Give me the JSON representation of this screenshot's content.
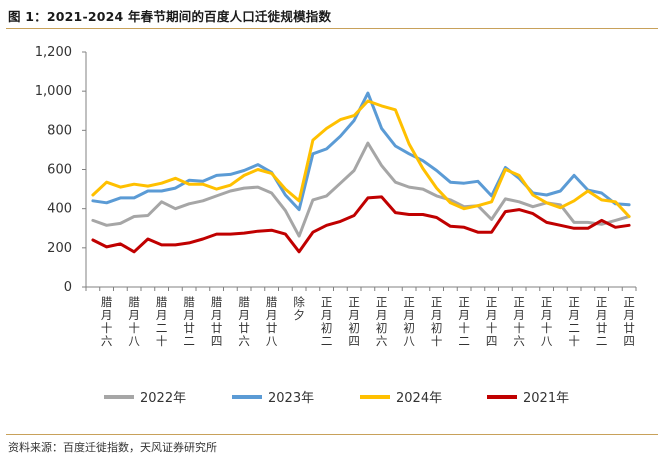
{
  "title": "图 1：2021-2024 年春节期间的百度人口迁徙规模指数",
  "source": "资料来源：百度迁徙指数，天风证券研究所",
  "chart_data": {
    "type": "line",
    "ylim": [
      0,
      1200
    ],
    "yticks": [
      "0",
      "200",
      "400",
      "600",
      "800",
      "1,000",
      "1,200"
    ],
    "ytick_values": [
      0,
      200,
      400,
      600,
      800,
      1000,
      1200
    ],
    "x_labels": [
      "腊月十六",
      "腊月十八",
      "腊月二十",
      "腊月廿二",
      "腊月廿四",
      "腊月廿六",
      "腊月廿八",
      "除夕",
      "正月初二",
      "正月初四",
      "正月初六",
      "正月初八",
      "正月初十",
      "正月十二",
      "正月十四",
      "正月十六",
      "正月十八",
      "正月二十",
      "正月廿二",
      "正月廿四"
    ],
    "n_points": 40,
    "series": [
      {
        "name": "2022年",
        "color": "#a6a6a6",
        "values": [
          340,
          315,
          325,
          360,
          365,
          435,
          400,
          425,
          440,
          465,
          490,
          505,
          510,
          480,
          390,
          260,
          445,
          465,
          530,
          595,
          735,
          620,
          535,
          510,
          500,
          465,
          445,
          410,
          415,
          345,
          450,
          435,
          410,
          430,
          420,
          330,
          330,
          320,
          340,
          360
        ]
      },
      {
        "name": "2023年",
        "color": "#5b9bd5",
        "values": [
          440,
          430,
          455,
          455,
          490,
          490,
          505,
          545,
          540,
          570,
          575,
          595,
          625,
          585,
          470,
          395,
          680,
          705,
          770,
          850,
          990,
          810,
          720,
          680,
          645,
          595,
          535,
          530,
          540,
          465,
          610,
          555,
          480,
          470,
          490,
          570,
          495,
          480,
          425,
          420
        ]
      },
      {
        "name": "2024年",
        "color": "#ffc000",
        "values": [
          470,
          535,
          510,
          525,
          515,
          530,
          555,
          525,
          525,
          500,
          520,
          570,
          600,
          580,
          500,
          440,
          750,
          810,
          855,
          875,
          950,
          925,
          905,
          730,
          605,
          505,
          430,
          400,
          415,
          435,
          600,
          570,
          470,
          430,
          405,
          440,
          490,
          445,
          435,
          360
        ]
      },
      {
        "name": "2021年",
        "color": "#c00000",
        "values": [
          240,
          205,
          220,
          180,
          245,
          215,
          215,
          225,
          245,
          270,
          270,
          275,
          285,
          290,
          270,
          180,
          280,
          315,
          335,
          365,
          455,
          460,
          380,
          370,
          370,
          355,
          310,
          305,
          280,
          280,
          385,
          395,
          375,
          330,
          315,
          300,
          300,
          340,
          305,
          315
        ]
      }
    ],
    "legend_position": "bottom"
  }
}
